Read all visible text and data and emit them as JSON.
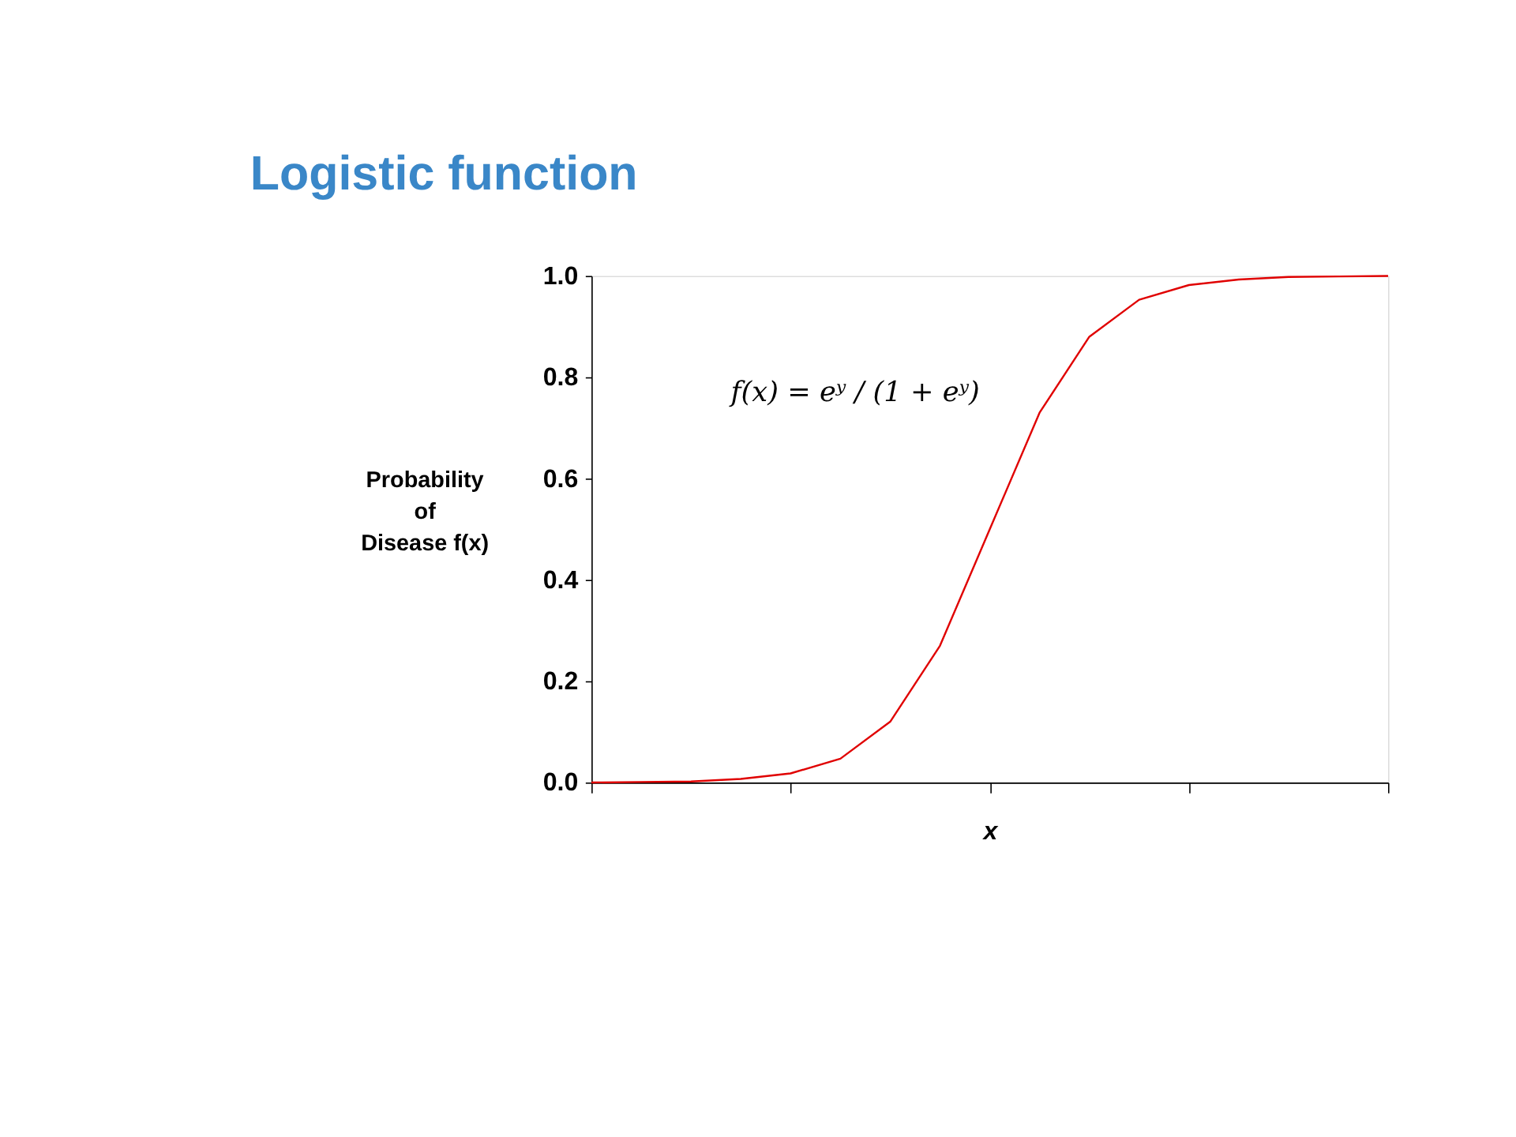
{
  "chart_data": {
    "type": "line",
    "title": "Logistic function",
    "xlabel": "x",
    "ylabel": "Probability\nof\nDisease f(x)",
    "categories": [
      null,
      null,
      null,
      null,
      null,
      null,
      null,
      null,
      null,
      null,
      null,
      null,
      null,
      null,
      null,
      null,
      null
    ],
    "series": [
      {
        "color": "#e00000",
        "values": [
          0,
          0.001,
          0.002,
          0.007,
          0.018,
          0.047,
          0.12,
          0.27,
          0.5,
          0.73,
          0.88,
          0.953,
          0.982,
          0.993,
          0.998,
          0.999,
          1.0
        ]
      }
    ],
    "ylim": [
      0,
      1
    ],
    "yticks": [
      {
        "value": 0,
        "label": "0.0"
      },
      {
        "value": 0.2,
        "label": "0.2"
      },
      {
        "value": 0.4,
        "label": "0.4"
      },
      {
        "value": 0.6,
        "label": "0.6"
      },
      {
        "value": 0.8,
        "label": "0.8"
      },
      {
        "value": 1,
        "label": "1.0"
      }
    ],
    "annotations": [
      "f(x) = eʸ / (1 + eʸ)"
    ],
    "tick_labels": "y",
    "grid": false,
    "marker": "none",
    "line_style": "solid"
  }
}
